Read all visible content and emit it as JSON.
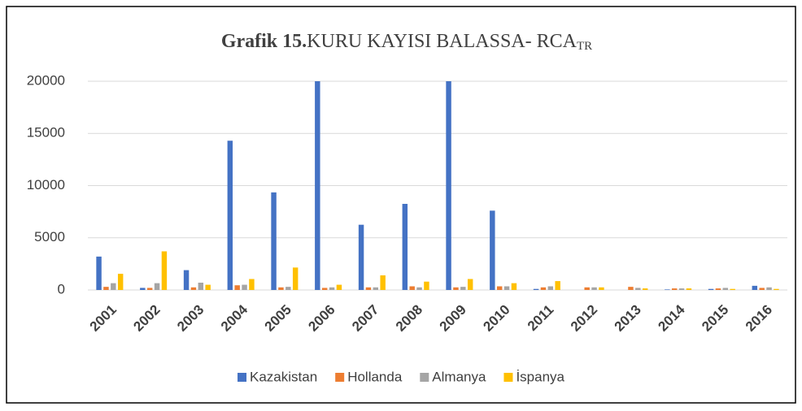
{
  "chart_data": {
    "type": "bar",
    "title_parts": [
      "Grafik 15.",
      "KURU KAYISI BALASSA- RCA",
      "TR"
    ],
    "categories": [
      "2001",
      "2002",
      "2003",
      "2004",
      "2005",
      "2006",
      "2007",
      "2008",
      "2009",
      "2010",
      "2011",
      "2012",
      "2013",
      "2014",
      "2015",
      "2016"
    ],
    "series": [
      {
        "name": "Kazakistan",
        "color": "#4472c4",
        "values": [
          3200,
          200,
          1900,
          14300,
          9350,
          20000,
          6250,
          8250,
          20000,
          7600,
          100,
          0,
          0,
          50,
          100,
          400
        ]
      },
      {
        "name": "Hollanda",
        "color": "#ed7d31",
        "values": [
          300,
          200,
          250,
          450,
          250,
          200,
          250,
          350,
          250,
          350,
          250,
          250,
          300,
          150,
          150,
          200
        ]
      },
      {
        "name": "Almanya",
        "color": "#a5a5a5",
        "values": [
          650,
          650,
          700,
          500,
          300,
          250,
          250,
          250,
          300,
          350,
          350,
          250,
          200,
          150,
          200,
          250
        ]
      },
      {
        "name": "İspanya",
        "color": "#ffc000",
        "values": [
          1550,
          3700,
          500,
          1050,
          2150,
          500,
          1400,
          800,
          1050,
          650,
          850,
          250,
          150,
          150,
          100,
          100
        ]
      }
    ],
    "ylim": [
      0,
      20000
    ],
    "yticks": [
      0,
      5000,
      10000,
      15000,
      20000
    ],
    "grid": true,
    "legend": "bottom"
  }
}
